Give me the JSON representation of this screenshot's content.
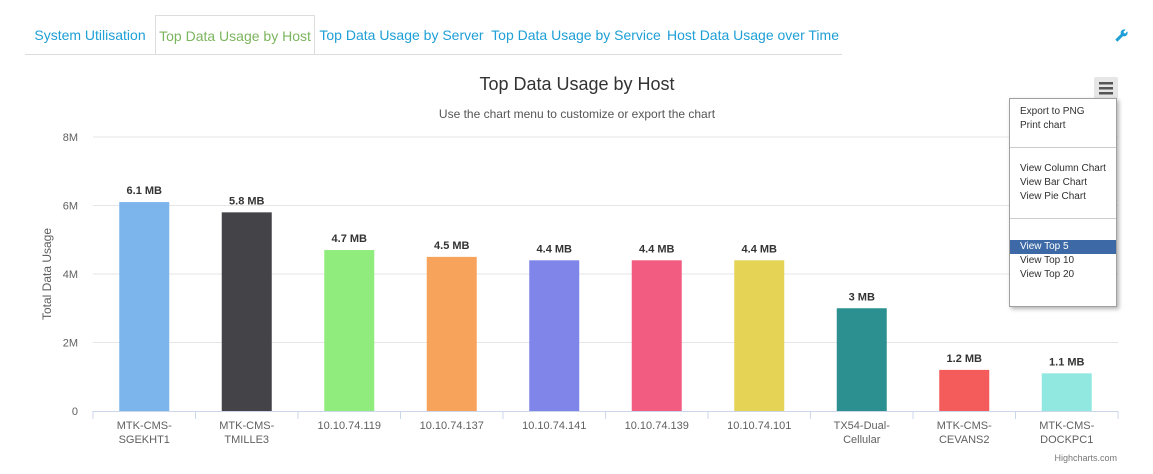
{
  "tabs": [
    "System Utilisation",
    "Top Data Usage by Host",
    "Top Data Usage by Server",
    "Top Data Usage by Service",
    "Host Data Usage over Time"
  ],
  "menu": {
    "groups": [
      [
        "Export to PNG",
        "Print chart"
      ],
      [
        "View Column Chart",
        "View Bar Chart",
        "View Pie Chart"
      ],
      [
        "View Top 5",
        "View Top 10",
        "View Top 20"
      ]
    ]
  },
  "credits": "Highcharts.com",
  "chart_data": {
    "type": "bar",
    "title": "Top Data Usage by Host",
    "subtitle": "Use the chart menu to customize or export the chart",
    "y_label": "Total Data Usage",
    "categories": [
      "MTK-CMS-SGEKHT1",
      "MTK-CMS-TMILLE3",
      "10.10.74.119",
      "10.10.74.137",
      "10.10.74.141",
      "10.10.74.139",
      "10.10.74.101",
      "TX54-Dual-Cellular",
      "MTK-CMS-CEVANS2",
      "MTK-CMS-DOCKPC1"
    ],
    "values": [
      6.1,
      5.8,
      4.7,
      4.5,
      4.4,
      4.4,
      4.4,
      3,
      1.2,
      1.1
    ],
    "value_labels": [
      "6.1 MB",
      "5.8 MB",
      "4.7 MB",
      "4.5 MB",
      "4.4 MB",
      "4.4 MB",
      "4.4 MB",
      "3 MB",
      "1.2 MB",
      "1.1 MB"
    ],
    "colors": [
      "#7cb5ec",
      "#434348",
      "#90ed7d",
      "#f7a35c",
      "#8085e9",
      "#f15c80",
      "#e4d354",
      "#2b908f",
      "#f45b5b",
      "#91e8e1"
    ],
    "ylim": [
      0,
      8
    ],
    "yticks": [
      0,
      {
        "value": 2,
        "label": "2M"
      },
      {
        "value": 4,
        "label": "4M"
      },
      {
        "value": 6,
        "label": "6M"
      },
      {
        "value": 8,
        "label": "8M"
      }
    ],
    "grid": true
  }
}
